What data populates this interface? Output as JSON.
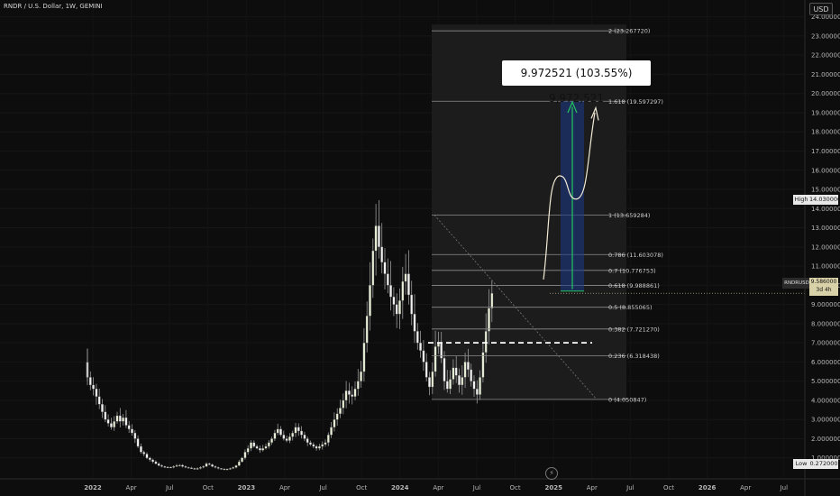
{
  "header": {
    "symbol_title": "RNDR / U.S. Dollar, 1W, GEMINI"
  },
  "currency_button": "USD",
  "measure_label": "9.972521 (103.55%) 9,972,521",
  "high_low": {
    "high_name": "High",
    "high_value": "14.030000",
    "low_name": "Low",
    "low_value": "0.272000"
  },
  "last_price": {
    "ticker": "RNDRUSD",
    "value": "9.586000",
    "countdown": "3d 4h"
  },
  "event_icon": "lightning-icon",
  "colors": {
    "up": "#e8f0d8",
    "down": "#f2f2f2",
    "wick": "#9a9a9a",
    "fib": "#8c8c8c",
    "arrow_green": "#22c55e",
    "box_fill": "#1e3a8a"
  },
  "chart_data": {
    "type": "candlestick",
    "title": "RNDR / U.S. Dollar, 1W, GEMINI",
    "ylim": [
      0,
      24.5
    ],
    "y_ticks": [
      "1.000000",
      "2.000000",
      "3.000000",
      "4.000000",
      "5.000000",
      "6.000000",
      "7.000000",
      "8.000000",
      "9.000000",
      "10.000000",
      "11.000000",
      "12.000000",
      "13.000000",
      "14.000000",
      "15.000000",
      "16.000000",
      "17.000000",
      "18.000000",
      "19.000000",
      "20.000000",
      "21.000000",
      "22.000000",
      "23.000000",
      "24.000000"
    ],
    "y_tick_values": [
      1,
      2,
      3,
      4,
      5,
      6,
      7,
      8,
      9,
      10,
      11,
      12,
      13,
      14,
      15,
      16,
      17,
      18,
      19,
      20,
      21,
      22,
      23,
      24
    ],
    "x_ticks": [
      "2022",
      "Apr",
      "Jul",
      "Oct",
      "2023",
      "Apr",
      "Jul",
      "Oct",
      "2024",
      "Apr",
      "Jul",
      "Oct",
      "2025",
      "Apr",
      "Jul",
      "Oct",
      "2026",
      "Apr",
      "Jul"
    ],
    "x_tick_months": [
      0,
      3,
      6,
      9,
      12,
      15,
      18,
      21,
      24,
      27,
      30,
      33,
      36,
      39,
      42,
      45,
      48,
      51,
      54
    ],
    "bold_ticks": [
      "2022",
      "2023",
      "2024",
      "2025",
      "2026"
    ],
    "price_path_weekly": [
      5.2,
      4.8,
      4.6,
      4.2,
      3.8,
      3.4,
      3.0,
      2.8,
      2.6,
      2.9,
      3.2,
      2.9,
      3.1,
      2.7,
      2.5,
      2.3,
      2.0,
      1.6,
      1.3,
      1.2,
      1.0,
      0.9,
      0.8,
      0.7,
      0.6,
      0.55,
      0.5,
      0.52,
      0.5,
      0.55,
      0.6,
      0.62,
      0.55,
      0.5,
      0.48,
      0.45,
      0.42,
      0.45,
      0.5,
      0.55,
      0.7,
      0.65,
      0.55,
      0.5,
      0.45,
      0.42,
      0.4,
      0.42,
      0.45,
      0.5,
      0.6,
      0.8,
      1.0,
      1.3,
      1.5,
      1.8,
      1.6,
      1.5,
      1.4,
      1.5,
      1.6,
      1.8,
      2.0,
      2.3,
      2.5,
      2.2,
      2.0,
      1.9,
      2.1,
      2.3,
      2.6,
      2.4,
      2.2,
      2.0,
      1.8,
      1.7,
      1.6,
      1.5,
      1.6,
      1.7,
      1.8,
      2.2,
      2.6,
      3.0,
      3.3,
      3.6,
      4.0,
      4.5,
      4.3,
      4.2,
      4.6,
      5.0,
      5.5,
      7.0,
      8.4,
      10.0,
      11.8,
      13.1,
      12.0,
      11.2,
      10.6,
      10.0,
      9.4,
      9.0,
      8.5,
      9.2,
      10.2,
      10.6,
      9.5,
      8.5,
      7.6,
      7.0,
      6.6,
      6.0,
      5.2,
      4.7,
      5.5,
      6.8,
      7.0,
      6.2,
      5.0,
      4.6,
      5.1,
      5.7,
      5.3,
      4.8,
      5.2,
      6.0,
      5.6,
      5.0,
      4.6,
      4.3,
      5.2,
      6.5,
      7.6,
      8.8,
      9.586
    ],
    "fib_levels": [
      {
        "label": "2 (23.267720)",
        "value": 23.26772
      },
      {
        "label": "1.618 (19.597297)",
        "value": 19.597297
      },
      {
        "label": "1 (13.659284)",
        "value": 13.659284
      },
      {
        "label": "0.786 (11.603078)",
        "value": 11.603078
      },
      {
        "label": "0.7 (10.776753)",
        "value": 10.776753
      },
      {
        "label": "0.618 (9.988861)",
        "value": 9.988861
      },
      {
        "label": "0.5 (8.855065)",
        "value": 8.855065
      },
      {
        "label": "0.382 (7.721270)",
        "value": 7.72127
      },
      {
        "label": "0.236 (6.318438)",
        "value": 6.318438
      },
      {
        "label": "0 (4.050847)",
        "value": 4.050847
      }
    ],
    "dashed_support": 7.0,
    "high": 14.03,
    "low": 0.272,
    "last": 9.586,
    "projection_target": 19.597297,
    "measure_change": 9.972521,
    "measure_percent": 103.55
  }
}
